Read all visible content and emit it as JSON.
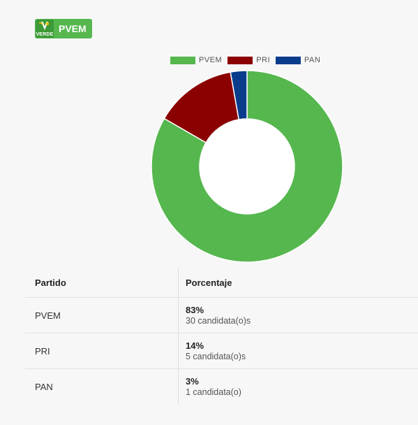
{
  "header": {
    "logo_text": "VERDE",
    "party_name": "PVEM",
    "badge_color": "#55b74e"
  },
  "chart_data": {
    "type": "pie",
    "variant": "doughnut",
    "legend_position": "top",
    "categories": [
      "PVEM",
      "PRI",
      "PAN"
    ],
    "values": [
      30,
      5,
      1
    ],
    "colors": [
      "#55b74e",
      "#8b0000",
      "#0a3c8c"
    ]
  },
  "table": {
    "headers": {
      "party": "Partido",
      "percentage": "Porcentaje"
    },
    "rows": [
      {
        "party": "PVEM",
        "percentage": "83%",
        "count": "30 candidata(o)s"
      },
      {
        "party": "PRI",
        "percentage": "14%",
        "count": "5 candidata(o)s"
      },
      {
        "party": "PAN",
        "percentage": "3%",
        "count": "1 candidata(o)"
      }
    ]
  }
}
